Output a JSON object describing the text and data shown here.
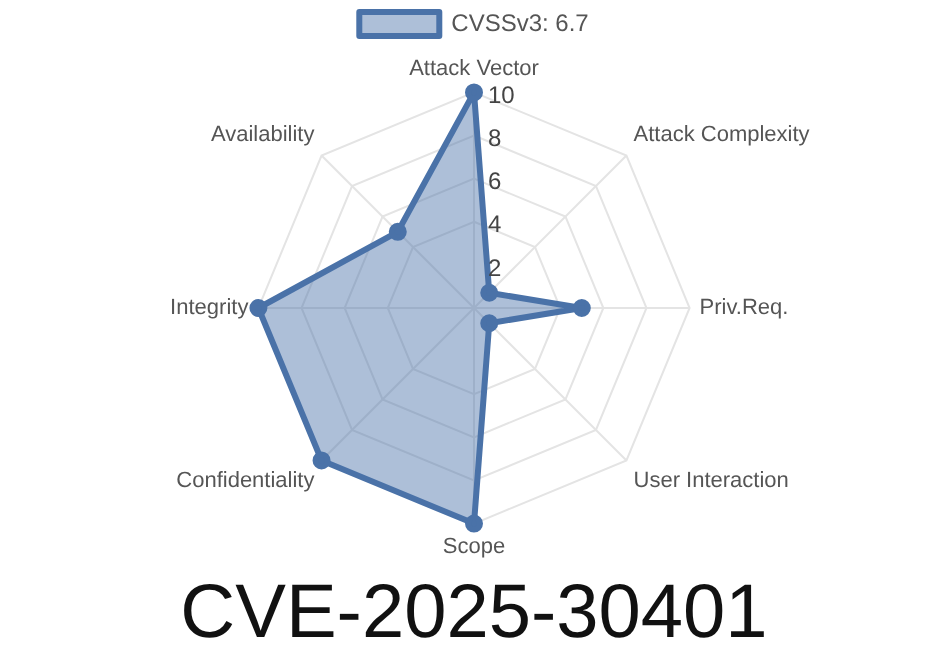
{
  "chart_data": {
    "type": "radar",
    "title": "CVE-2025-30401",
    "categories": [
      "Attack Vector",
      "Attack Complexity",
      "Priv.Req.",
      "User Interaction",
      "Scope",
      "Confidentiality",
      "Integrity",
      "Availability"
    ],
    "series": [
      {
        "name": "CVSSv3: 6.7",
        "color": "#4a72a8",
        "values": [
          10,
          1,
          5,
          1,
          10,
          10,
          10,
          5
        ]
      }
    ],
    "ylim": [
      0,
      10
    ],
    "yticks": [
      2,
      4,
      6,
      8,
      10
    ],
    "grid": true,
    "legend": "top",
    "marker": "circle"
  }
}
